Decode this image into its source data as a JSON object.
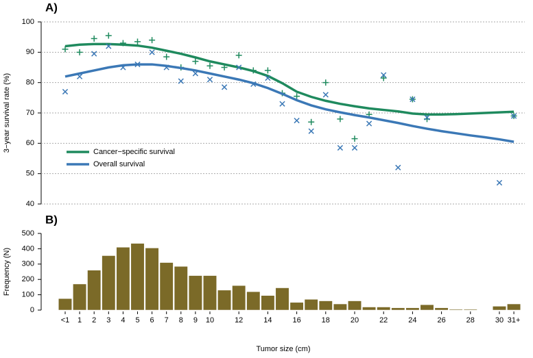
{
  "chart_data": [
    {
      "type": "line",
      "label": "A)",
      "ylabel": "3−year survival rate (%)",
      "ylim": [
        40,
        100
      ],
      "yticks": [
        40,
        50,
        60,
        70,
        80,
        90,
        100
      ],
      "grid": true,
      "series": [
        {
          "name": "Cancer−specific survival",
          "color": "#1f8a5e",
          "marker": "+",
          "values": [
            92,
            92.5,
            92.7,
            92.7,
            92.5,
            92.2,
            91.5,
            90.5,
            89.5,
            88.3,
            87,
            86,
            85,
            83.8,
            82.2,
            79.8,
            77,
            75.3,
            74,
            73,
            72.2,
            71.5,
            71,
            70.5,
            69.8,
            69.5,
            69.5,
            69.6,
            69.8,
            70,
            70.2,
            70.4
          ],
          "points": [
            91,
            90,
            94.5,
            95.5,
            93,
            93.5,
            94,
            88.5,
            85,
            87,
            85.5,
            85,
            89,
            84,
            84,
            76.5,
            75.5,
            67,
            80,
            68,
            61.5,
            69.5,
            81.5,
            null,
            74.5,
            68,
            null,
            null,
            null,
            null,
            null,
            69
          ]
        },
        {
          "name": "Overall survival",
          "color": "#3b78b6",
          "marker": "x",
          "values": [
            82,
            83,
            84,
            85,
            85.7,
            86,
            86,
            85.5,
            84.8,
            84,
            83,
            82,
            81,
            79.8,
            78.2,
            76.3,
            74.2,
            72.5,
            71.2,
            70.2,
            69.3,
            68.5,
            67.6,
            66.7,
            65.7,
            64.8,
            64,
            63.3,
            62.6,
            62,
            61.3,
            60.5
          ],
          "points": [
            77,
            82,
            89.5,
            92,
            85,
            86,
            90,
            85,
            80.5,
            83,
            81,
            78.5,
            85,
            79.5,
            81.5,
            73,
            67.5,
            64,
            76,
            58.5,
            58.5,
            66.5,
            82.5,
            52,
            74.5,
            68.5,
            null,
            null,
            null,
            null,
            47,
            69
          ]
        }
      ]
    },
    {
      "type": "bar",
      "label": "B)",
      "ylabel": "Frequency (N)",
      "xlabel": "Tumor size (cm)",
      "ylim": [
        0,
        500
      ],
      "yticks": [
        0,
        100,
        200,
        300,
        400,
        500
      ],
      "color": "#7b6a28",
      "categories": [
        "<1",
        "1",
        "2",
        "3",
        "4",
        "5",
        "6",
        "7",
        "8",
        "9",
        "10",
        null,
        "12",
        null,
        "14",
        null,
        "16",
        null,
        "18",
        null,
        "20",
        null,
        "22",
        null,
        "24",
        null,
        "26",
        null,
        "28",
        null,
        "30",
        "31+"
      ],
      "values": [
        75,
        170,
        260,
        355,
        410,
        435,
        405,
        310,
        285,
        225,
        225,
        130,
        160,
        120,
        95,
        145,
        50,
        70,
        60,
        40,
        60,
        20,
        20,
        15,
        15,
        35,
        15,
        5,
        5,
        0,
        25,
        40
      ]
    }
  ]
}
